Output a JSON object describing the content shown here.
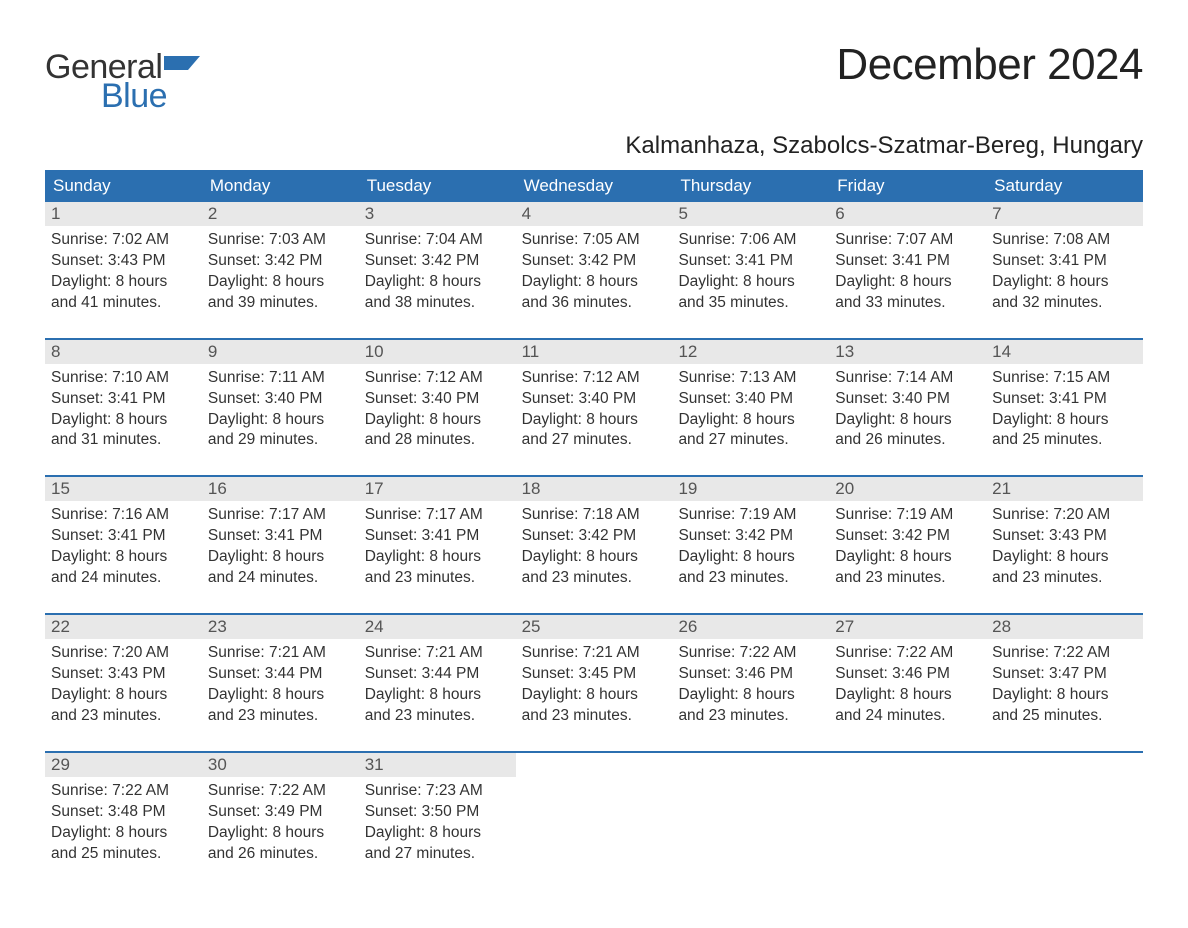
{
  "brand": {
    "word1": "General",
    "word2": "Blue"
  },
  "title": "December 2024",
  "location": "Kalmanhaza, Szabolcs-Szatmar-Bereg, Hungary",
  "colors": {
    "accent": "#2b6fb0",
    "header_bg": "#2b6fb0",
    "header_text": "#ffffff",
    "daynum_bg": "#e8e8e8",
    "body_text": "#333333",
    "page_bg": "#ffffff"
  },
  "weekdays": [
    "Sunday",
    "Monday",
    "Tuesday",
    "Wednesday",
    "Thursday",
    "Friday",
    "Saturday"
  ],
  "weeks": [
    {
      "days": [
        {
          "n": "1",
          "sunrise": "Sunrise: 7:02 AM",
          "sunset": "Sunset: 3:43 PM",
          "day1": "Daylight: 8 hours",
          "day2": "and 41 minutes."
        },
        {
          "n": "2",
          "sunrise": "Sunrise: 7:03 AM",
          "sunset": "Sunset: 3:42 PM",
          "day1": "Daylight: 8 hours",
          "day2": "and 39 minutes."
        },
        {
          "n": "3",
          "sunrise": "Sunrise: 7:04 AM",
          "sunset": "Sunset: 3:42 PM",
          "day1": "Daylight: 8 hours",
          "day2": "and 38 minutes."
        },
        {
          "n": "4",
          "sunrise": "Sunrise: 7:05 AM",
          "sunset": "Sunset: 3:42 PM",
          "day1": "Daylight: 8 hours",
          "day2": "and 36 minutes."
        },
        {
          "n": "5",
          "sunrise": "Sunrise: 7:06 AM",
          "sunset": "Sunset: 3:41 PM",
          "day1": "Daylight: 8 hours",
          "day2": "and 35 minutes."
        },
        {
          "n": "6",
          "sunrise": "Sunrise: 7:07 AM",
          "sunset": "Sunset: 3:41 PM",
          "day1": "Daylight: 8 hours",
          "day2": "and 33 minutes."
        },
        {
          "n": "7",
          "sunrise": "Sunrise: 7:08 AM",
          "sunset": "Sunset: 3:41 PM",
          "day1": "Daylight: 8 hours",
          "day2": "and 32 minutes."
        }
      ]
    },
    {
      "days": [
        {
          "n": "8",
          "sunrise": "Sunrise: 7:10 AM",
          "sunset": "Sunset: 3:41 PM",
          "day1": "Daylight: 8 hours",
          "day2": "and 31 minutes."
        },
        {
          "n": "9",
          "sunrise": "Sunrise: 7:11 AM",
          "sunset": "Sunset: 3:40 PM",
          "day1": "Daylight: 8 hours",
          "day2": "and 29 minutes."
        },
        {
          "n": "10",
          "sunrise": "Sunrise: 7:12 AM",
          "sunset": "Sunset: 3:40 PM",
          "day1": "Daylight: 8 hours",
          "day2": "and 28 minutes."
        },
        {
          "n": "11",
          "sunrise": "Sunrise: 7:12 AM",
          "sunset": "Sunset: 3:40 PM",
          "day1": "Daylight: 8 hours",
          "day2": "and 27 minutes."
        },
        {
          "n": "12",
          "sunrise": "Sunrise: 7:13 AM",
          "sunset": "Sunset: 3:40 PM",
          "day1": "Daylight: 8 hours",
          "day2": "and 27 minutes."
        },
        {
          "n": "13",
          "sunrise": "Sunrise: 7:14 AM",
          "sunset": "Sunset: 3:40 PM",
          "day1": "Daylight: 8 hours",
          "day2": "and 26 minutes."
        },
        {
          "n": "14",
          "sunrise": "Sunrise: 7:15 AM",
          "sunset": "Sunset: 3:41 PM",
          "day1": "Daylight: 8 hours",
          "day2": "and 25 minutes."
        }
      ]
    },
    {
      "days": [
        {
          "n": "15",
          "sunrise": "Sunrise: 7:16 AM",
          "sunset": "Sunset: 3:41 PM",
          "day1": "Daylight: 8 hours",
          "day2": "and 24 minutes."
        },
        {
          "n": "16",
          "sunrise": "Sunrise: 7:17 AM",
          "sunset": "Sunset: 3:41 PM",
          "day1": "Daylight: 8 hours",
          "day2": "and 24 minutes."
        },
        {
          "n": "17",
          "sunrise": "Sunrise: 7:17 AM",
          "sunset": "Sunset: 3:41 PM",
          "day1": "Daylight: 8 hours",
          "day2": "and 23 minutes."
        },
        {
          "n": "18",
          "sunrise": "Sunrise: 7:18 AM",
          "sunset": "Sunset: 3:42 PM",
          "day1": "Daylight: 8 hours",
          "day2": "and 23 minutes."
        },
        {
          "n": "19",
          "sunrise": "Sunrise: 7:19 AM",
          "sunset": "Sunset: 3:42 PM",
          "day1": "Daylight: 8 hours",
          "day2": "and 23 minutes."
        },
        {
          "n": "20",
          "sunrise": "Sunrise: 7:19 AM",
          "sunset": "Sunset: 3:42 PM",
          "day1": "Daylight: 8 hours",
          "day2": "and 23 minutes."
        },
        {
          "n": "21",
          "sunrise": "Sunrise: 7:20 AM",
          "sunset": "Sunset: 3:43 PM",
          "day1": "Daylight: 8 hours",
          "day2": "and 23 minutes."
        }
      ]
    },
    {
      "days": [
        {
          "n": "22",
          "sunrise": "Sunrise: 7:20 AM",
          "sunset": "Sunset: 3:43 PM",
          "day1": "Daylight: 8 hours",
          "day2": "and 23 minutes."
        },
        {
          "n": "23",
          "sunrise": "Sunrise: 7:21 AM",
          "sunset": "Sunset: 3:44 PM",
          "day1": "Daylight: 8 hours",
          "day2": "and 23 minutes."
        },
        {
          "n": "24",
          "sunrise": "Sunrise: 7:21 AM",
          "sunset": "Sunset: 3:44 PM",
          "day1": "Daylight: 8 hours",
          "day2": "and 23 minutes."
        },
        {
          "n": "25",
          "sunrise": "Sunrise: 7:21 AM",
          "sunset": "Sunset: 3:45 PM",
          "day1": "Daylight: 8 hours",
          "day2": "and 23 minutes."
        },
        {
          "n": "26",
          "sunrise": "Sunrise: 7:22 AM",
          "sunset": "Sunset: 3:46 PM",
          "day1": "Daylight: 8 hours",
          "day2": "and 23 minutes."
        },
        {
          "n": "27",
          "sunrise": "Sunrise: 7:22 AM",
          "sunset": "Sunset: 3:46 PM",
          "day1": "Daylight: 8 hours",
          "day2": "and 24 minutes."
        },
        {
          "n": "28",
          "sunrise": "Sunrise: 7:22 AM",
          "sunset": "Sunset: 3:47 PM",
          "day1": "Daylight: 8 hours",
          "day2": "and 25 minutes."
        }
      ]
    },
    {
      "days": [
        {
          "n": "29",
          "sunrise": "Sunrise: 7:22 AM",
          "sunset": "Sunset: 3:48 PM",
          "day1": "Daylight: 8 hours",
          "day2": "and 25 minutes."
        },
        {
          "n": "30",
          "sunrise": "Sunrise: 7:22 AM",
          "sunset": "Sunset: 3:49 PM",
          "day1": "Daylight: 8 hours",
          "day2": "and 26 minutes."
        },
        {
          "n": "31",
          "sunrise": "Sunrise: 7:23 AM",
          "sunset": "Sunset: 3:50 PM",
          "day1": "Daylight: 8 hours",
          "day2": "and 27 minutes."
        },
        {
          "empty": true
        },
        {
          "empty": true
        },
        {
          "empty": true
        },
        {
          "empty": true
        }
      ]
    }
  ]
}
